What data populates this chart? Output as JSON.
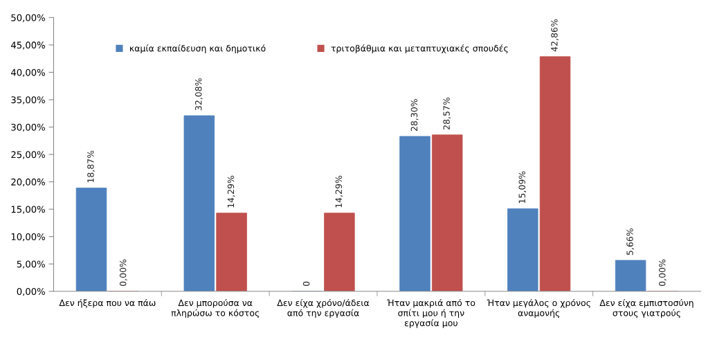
{
  "chart_data": {
    "type": "bar",
    "categories": [
      "Δεν ήξερα που να πάω",
      "Δεν μπορούσα να\nπληρώσω το κόστος",
      "Δεν είχα χρόνο/άδεια\nαπό την εργασία",
      "Ήταν μακριά από το\nσπίτι μου ή την\nεργασία μου",
      "Ήταν μεγάλος ο χρόνος\nαναμονής",
      "Δεν είχα εμπιστοσύνη\nστους γιατρούς"
    ],
    "series": [
      {
        "name": "καμία εκπαίδευση και δημοτικό",
        "color": "#4f81bd",
        "values": [
          18.87,
          32.08,
          0,
          28.3,
          15.09,
          5.66
        ],
        "value_labels": [
          "18,87%",
          "32,08%",
          "0",
          "28,30%",
          "15,09%",
          "5,66%"
        ]
      },
      {
        "name": "τριτοβάθμια και μεταπτυχιακές σπουδές",
        "color": "#c0504d",
        "values": [
          0,
          14.29,
          14.29,
          28.57,
          42.86,
          0
        ],
        "value_labels": [
          "0,00%",
          "14,29%",
          "14,29%",
          "28,57%",
          "42,86%",
          "0,00%"
        ]
      }
    ],
    "ylim": [
      0,
      50
    ],
    "yticks": [
      {
        "value": 0,
        "label": "0,00%"
      },
      {
        "value": 5,
        "label": "5,00%"
      },
      {
        "value": 10,
        "label": "10,00%"
      },
      {
        "value": 15,
        "label": "15,00%"
      },
      {
        "value": 20,
        "label": "20,00%"
      },
      {
        "value": 25,
        "label": "25,00%"
      },
      {
        "value": 30,
        "label": "30,00%"
      },
      {
        "value": 35,
        "label": "35,00%"
      },
      {
        "value": 40,
        "label": "40,00%"
      },
      {
        "value": 45,
        "label": "45,00%"
      },
      {
        "value": 50,
        "label": "50,00%"
      }
    ],
    "grid": false,
    "legend": "top"
  }
}
